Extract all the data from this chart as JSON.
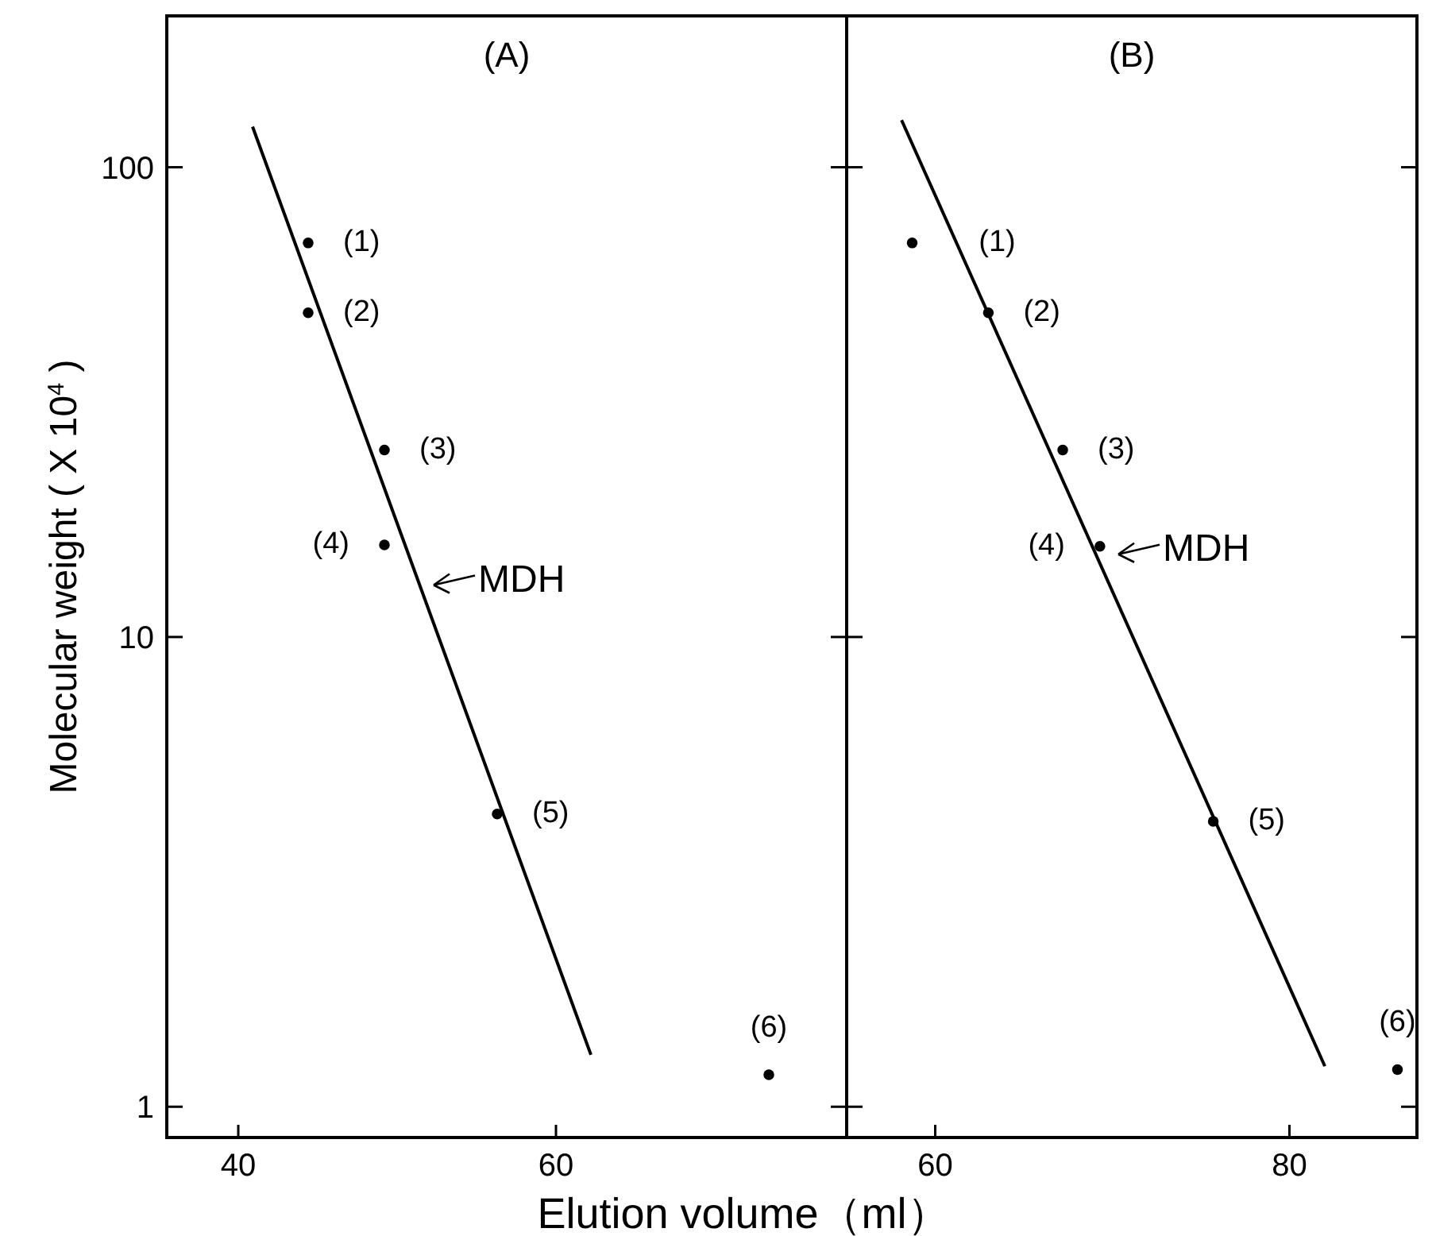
{
  "chart_data": [
    {
      "type": "scatter",
      "title": "(A)",
      "xlabel": "Elution volume（ml）",
      "ylabel": "Molecular weight ( X 10$^{4}$ )",
      "log": "y",
      "xlim": [
        35.5,
        78.3
      ],
      "ylim": [
        0.86,
        210
      ],
      "xticks": [
        40,
        60
      ],
      "yticks": [
        1,
        10,
        100
      ],
      "series": [
        {
          "marker": "circle",
          "color": "#000000",
          "x": [
            44.4,
            44.4,
            49.2,
            49.2,
            56.3,
            73.4
          ],
          "values": [
            69,
            49,
            25,
            15.7,
            4.2,
            1.17
          ]
        },
        {
          "type": "line",
          "color": "#000000",
          "x": [
            40.9,
            62.2
          ],
          "values": [
            122,
            1.29
          ]
        }
      ],
      "annotations": [
        {
          "text": "MDH",
          "x": 51.7,
          "y": 12.9
        },
        {
          "text": "(1)",
          "x": 44.4,
          "y": 69
        },
        {
          "text": "(2)",
          "x": 44.4,
          "y": 49
        },
        {
          "text": "(3)",
          "x": 49.2,
          "y": 25
        },
        {
          "text": "(4)",
          "x": 49.2,
          "y": 15.7
        },
        {
          "text": "(5)",
          "x": 56.3,
          "y": 4.2
        },
        {
          "text": "(6)",
          "x": 73.4,
          "y": 1.17
        }
      ]
    },
    {
      "type": "scatter",
      "title": "(B)",
      "log": "y",
      "xlim": [
        55,
        87.2
      ],
      "ylim": [
        0.86,
        210
      ],
      "xticks": [
        60,
        80
      ],
      "yticks": [
        {
          "value": 1,
          "label": null
        },
        {
          "value": 10,
          "label": null
        },
        {
          "value": 100,
          "label": null
        }
      ],
      "tick_labels": "x",
      "series": [
        {
          "marker": "circle",
          "color": "#000000",
          "x": [
            58.7,
            63.0,
            67.2,
            69.3,
            75.7,
            86.1
          ],
          "values": [
            69,
            49,
            25,
            15.6,
            4.05,
            1.2
          ]
        },
        {
          "type": "line",
          "color": "#000000",
          "x": [
            58.1,
            82.0
          ],
          "values": [
            126,
            1.22
          ]
        }
      ],
      "annotations": [
        {
          "text": "MDH",
          "x": 69.8,
          "y": 15
        },
        {
          "text": "(1)",
          "x": 58.7,
          "y": 69
        },
        {
          "text": "(2)",
          "x": 63.0,
          "y": 49
        },
        {
          "text": "(3)",
          "x": 67.2,
          "y": 25
        },
        {
          "text": "(4)",
          "x": 69.3,
          "y": 15.6
        },
        {
          "text": "(5)",
          "x": 75.7,
          "y": 4.05
        },
        {
          "text": "(6)",
          "x": 86.1,
          "y": 1.2
        }
      ]
    }
  ]
}
